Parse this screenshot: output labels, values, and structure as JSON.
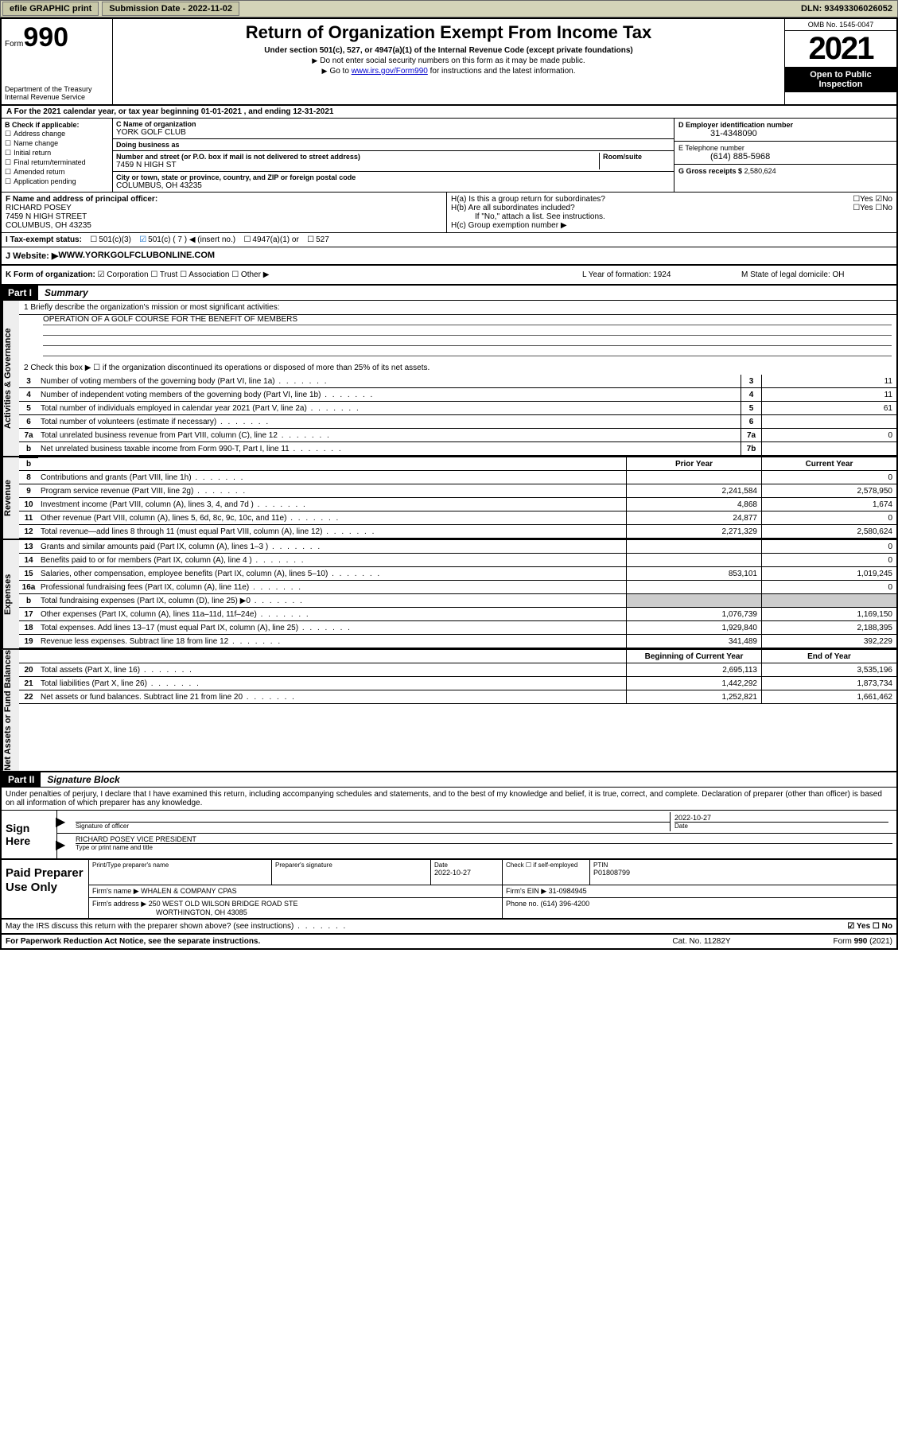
{
  "topbar": {
    "efile": "efile GRAPHIC print",
    "submission_label": "Submission Date - ",
    "submission_date": "2022-11-02",
    "dln_label": "DLN: ",
    "dln": "93493306026052"
  },
  "header": {
    "form_word": "Form",
    "form_num": "990",
    "title": "Return of Organization Exempt From Income Tax",
    "subtitle": "Under section 501(c), 527, or 4947(a)(1) of the Internal Revenue Code (except private foundations)",
    "note1": "Do not enter social security numbers on this form as it may be made public.",
    "note2_pre": "Go to ",
    "note2_link": "www.irs.gov/Form990",
    "note2_post": " for instructions and the latest information.",
    "dept": "Department of the Treasury\nInternal Revenue Service",
    "omb": "OMB No. 1545-0047",
    "year": "2021",
    "open_public": "Open to Public Inspection"
  },
  "row_a": "A For the 2021 calendar year, or tax year beginning 01-01-2021   , and ending 12-31-2021",
  "col_b": {
    "label": "B Check if applicable:",
    "items": [
      "Address change",
      "Name change",
      "Initial return",
      "Final return/terminated",
      "Amended return",
      "Application pending"
    ]
  },
  "col_c": {
    "name_label": "C Name of organization",
    "name": "YORK GOLF CLUB",
    "dba_label": "Doing business as",
    "dba": "",
    "addr_label": "Number and street (or P.O. box if mail is not delivered to street address)",
    "room_label": "Room/suite",
    "addr": "7459 N HIGH ST",
    "city_label": "City or town, state or province, country, and ZIP or foreign postal code",
    "city": "COLUMBUS, OH  43235"
  },
  "col_de": {
    "d_label": "D Employer identification number",
    "d_val": "31-4348090",
    "e_label": "E Telephone number",
    "e_val": "(614) 885-5968",
    "g_label": "G Gross receipts $ ",
    "g_val": "2,580,624"
  },
  "row_f": {
    "label": "F  Name and address of principal officer:",
    "name": "RICHARD POSEY",
    "addr1": "7459 N HIGH STREET",
    "addr2": "COLUMBUS, OH  43235"
  },
  "row_h": {
    "ha": "H(a)  Is this a group return for subordinates?",
    "ha_yn": "☐Yes ☑No",
    "hb": "H(b)  Are all subordinates included?",
    "hb_yn": "☐Yes ☐No",
    "hb_note": "If \"No,\" attach a list. See instructions.",
    "hc": "H(c)  Group exemption number ▶"
  },
  "row_i": {
    "label": "I   Tax-exempt status:",
    "opt1": "501(c)(3)",
    "opt2": "501(c) ( 7 ) ◀ (insert no.)",
    "opt3": "4947(a)(1) or",
    "opt4": "527"
  },
  "row_j": {
    "label": "J   Website: ▶ ",
    "val": "WWW.YORKGOLFCLUBONLINE.COM"
  },
  "row_k": {
    "label": "K Form of organization:",
    "opts": "☑ Corporation  ☐ Trust  ☐ Association  ☐ Other ▶",
    "l": "L Year of formation: 1924",
    "m": "M State of legal domicile: OH"
  },
  "part1": {
    "num": "Part I",
    "title": "Summary"
  },
  "mission": {
    "prompt": "1   Briefly describe the organization's mission or most significant activities:",
    "text": "OPERATION OF A GOLF COURSE FOR THE BENEFIT OF MEMBERS"
  },
  "line2": "2   Check this box ▶ ☐  if the organization discontinued its operations or disposed of more than 25% of its net assets.",
  "gov_lines": [
    {
      "n": "3",
      "d": "Number of voting members of the governing body (Part VI, line 1a)",
      "box": "3",
      "v": "11"
    },
    {
      "n": "4",
      "d": "Number of independent voting members of the governing body (Part VI, line 1b)",
      "box": "4",
      "v": "11"
    },
    {
      "n": "5",
      "d": "Total number of individuals employed in calendar year 2021 (Part V, line 2a)",
      "box": "5",
      "v": "61"
    },
    {
      "n": "6",
      "d": "Total number of volunteers (estimate if necessary)",
      "box": "6",
      "v": ""
    },
    {
      "n": "7a",
      "d": "Total unrelated business revenue from Part VIII, column (C), line 12",
      "box": "7a",
      "v": "0"
    },
    {
      "n": "b",
      "d": "Net unrelated business taxable income from Form 990-T, Part I, line 11",
      "box": "7b",
      "v": ""
    }
  ],
  "rev_hdr": {
    "prior": "Prior Year",
    "current": "Current Year"
  },
  "rev_lines": [
    {
      "n": "8",
      "d": "Contributions and grants (Part VIII, line 1h)",
      "p": "",
      "c": "0"
    },
    {
      "n": "9",
      "d": "Program service revenue (Part VIII, line 2g)",
      "p": "2,241,584",
      "c": "2,578,950"
    },
    {
      "n": "10",
      "d": "Investment income (Part VIII, column (A), lines 3, 4, and 7d )",
      "p": "4,868",
      "c": "1,674"
    },
    {
      "n": "11",
      "d": "Other revenue (Part VIII, column (A), lines 5, 6d, 8c, 9c, 10c, and 11e)",
      "p": "24,877",
      "c": "0"
    },
    {
      "n": "12",
      "d": "Total revenue—add lines 8 through 11 (must equal Part VIII, column (A), line 12)",
      "p": "2,271,329",
      "c": "2,580,624"
    }
  ],
  "exp_lines": [
    {
      "n": "13",
      "d": "Grants and similar amounts paid (Part IX, column (A), lines 1–3 )",
      "p": "",
      "c": "0"
    },
    {
      "n": "14",
      "d": "Benefits paid to or for members (Part IX, column (A), line 4 )",
      "p": "",
      "c": "0"
    },
    {
      "n": "15",
      "d": "Salaries, other compensation, employee benefits (Part IX, column (A), lines 5–10)",
      "p": "853,101",
      "c": "1,019,245"
    },
    {
      "n": "16a",
      "d": "Professional fundraising fees (Part IX, column (A), line 11e)",
      "p": "",
      "c": "0"
    },
    {
      "n": "b",
      "d": "Total fundraising expenses (Part IX, column (D), line 25) ▶0",
      "p": "shade",
      "c": "shade"
    },
    {
      "n": "17",
      "d": "Other expenses (Part IX, column (A), lines 11a–11d, 11f–24e)",
      "p": "1,076,739",
      "c": "1,169,150"
    },
    {
      "n": "18",
      "d": "Total expenses. Add lines 13–17 (must equal Part IX, column (A), line 25)",
      "p": "1,929,840",
      "c": "2,188,395"
    },
    {
      "n": "19",
      "d": "Revenue less expenses. Subtract line 18 from line 12",
      "p": "341,489",
      "c": "392,229"
    }
  ],
  "na_hdr": {
    "b": "Beginning of Current Year",
    "e": "End of Year"
  },
  "na_lines": [
    {
      "n": "20",
      "d": "Total assets (Part X, line 16)",
      "p": "2,695,113",
      "c": "3,535,196"
    },
    {
      "n": "21",
      "d": "Total liabilities (Part X, line 26)",
      "p": "1,442,292",
      "c": "1,873,734"
    },
    {
      "n": "22",
      "d": "Net assets or fund balances. Subtract line 21 from line 20",
      "p": "1,252,821",
      "c": "1,661,462"
    }
  ],
  "tabs": {
    "gov": "Activities & Governance",
    "rev": "Revenue",
    "exp": "Expenses",
    "na": "Net Assets or Fund Balances"
  },
  "part2": {
    "num": "Part II",
    "title": "Signature Block"
  },
  "sig_intro": "Under penalties of perjury, I declare that I have examined this return, including accompanying schedules and statements, and to the best of my knowledge and belief, it is true, correct, and complete. Declaration of preparer (other than officer) is based on all information of which preparer has any knowledge.",
  "sign": {
    "here": "Sign Here",
    "sig_label": "Signature of officer",
    "date": "2022-10-27",
    "date_label": "Date",
    "name": "RICHARD POSEY VICE PRESIDENT",
    "name_label": "Type or print name and title"
  },
  "prep": {
    "title": "Paid Preparer Use Only",
    "h1": "Print/Type preparer's name",
    "h2": "Preparer's signature",
    "h3": "Date",
    "h3v": "2022-10-27",
    "h4": "Check ☐ if self-employed",
    "h5": "PTIN",
    "h5v": "P01808799",
    "firm_label": "Firm's name    ▶ ",
    "firm": "WHALEN & COMPANY CPAS",
    "ein_label": "Firm's EIN ▶ ",
    "ein": "31-0984945",
    "addr_label": "Firm's address ▶ ",
    "addr1": "250 WEST OLD WILSON BRIDGE ROAD STE",
    "addr2": "WORTHINGTON, OH  43085",
    "phone_label": "Phone no. ",
    "phone": "(614) 396-4200"
  },
  "may_discuss": "May the IRS discuss this return with the preparer shown above? (see instructions)",
  "may_yn": "☑ Yes  ☐ No",
  "footer": {
    "l": "For Paperwork Reduction Act Notice, see the separate instructions.",
    "m": "Cat. No. 11282Y",
    "r": "Form 990 (2021)"
  },
  "colors": {
    "topbar_bg": "#d4d4b8",
    "black": "#000000",
    "link": "#0000cc",
    "check": "#0060c0",
    "shade": "#cccccc"
  }
}
